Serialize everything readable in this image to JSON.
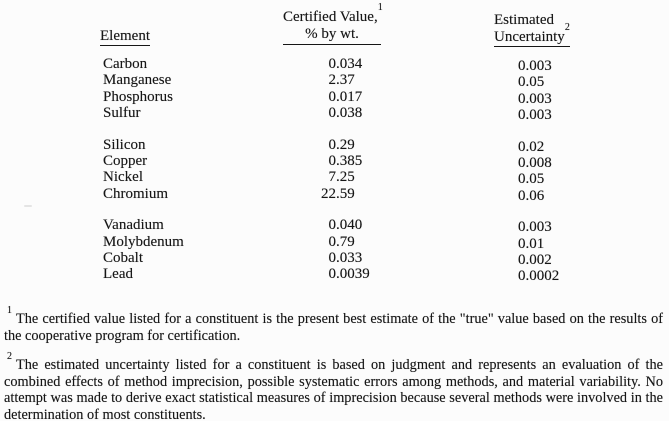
{
  "page": {
    "background": "#fcfcfc",
    "ink": "#161616"
  },
  "table": {
    "headers": {
      "element": "Element",
      "certified_value_line1": "Certified Value,",
      "certified_value_footnote_ref": "1",
      "certified_value_line2": "% by wt.",
      "uncertainty_line1": "Estimated",
      "uncertainty_line2": "Uncertainty",
      "uncertainty_footnote_ref": "2"
    },
    "groups": [
      [
        {
          "element": "Carbon",
          "certified_value": "0.034",
          "uncertainty": "0.003"
        },
        {
          "element": "Manganese",
          "certified_value": "2.37",
          "uncertainty": "0.05"
        },
        {
          "element": "Phosphorus",
          "certified_value": "0.017",
          "uncertainty": "0.003"
        },
        {
          "element": "Sulfur",
          "certified_value": "0.038",
          "uncertainty": "0.003"
        }
      ],
      [
        {
          "element": "Silicon",
          "certified_value": "0.29",
          "uncertainty": "0.02"
        },
        {
          "element": "Copper",
          "certified_value": "0.385",
          "uncertainty": "0.008"
        },
        {
          "element": "Nickel",
          "certified_value": "7.25",
          "uncertainty": "0.05"
        },
        {
          "element": "Chromium",
          "certified_value": "22.59",
          "uncertainty": "0.06"
        }
      ],
      [
        {
          "element": "Vanadium",
          "certified_value": "0.040",
          "uncertainty": "0.003"
        },
        {
          "element": "Molybdenum",
          "certified_value": "0.79",
          "uncertainty": "0.01"
        },
        {
          "element": "Cobalt",
          "certified_value": "0.033",
          "uncertainty": "0.002"
        },
        {
          "element": "Lead",
          "certified_value": "0.0039",
          "uncertainty": "0.0002"
        }
      ]
    ]
  },
  "footnotes": [
    {
      "marker": "1",
      "text": "The certified value listed for a constituent is the present best estimate of the \"true\" value based on the results of the cooperative program for certification."
    },
    {
      "marker": "2",
      "text": "The estimated uncertainty listed for a constituent is based on judgment and represents an evaluation of the combined effects of method imprecision, possible systematic errors among methods, and material variability. No attempt was made to derive exact statistical measures of imprecision because several methods were involved in the determination of most constituents."
    }
  ]
}
